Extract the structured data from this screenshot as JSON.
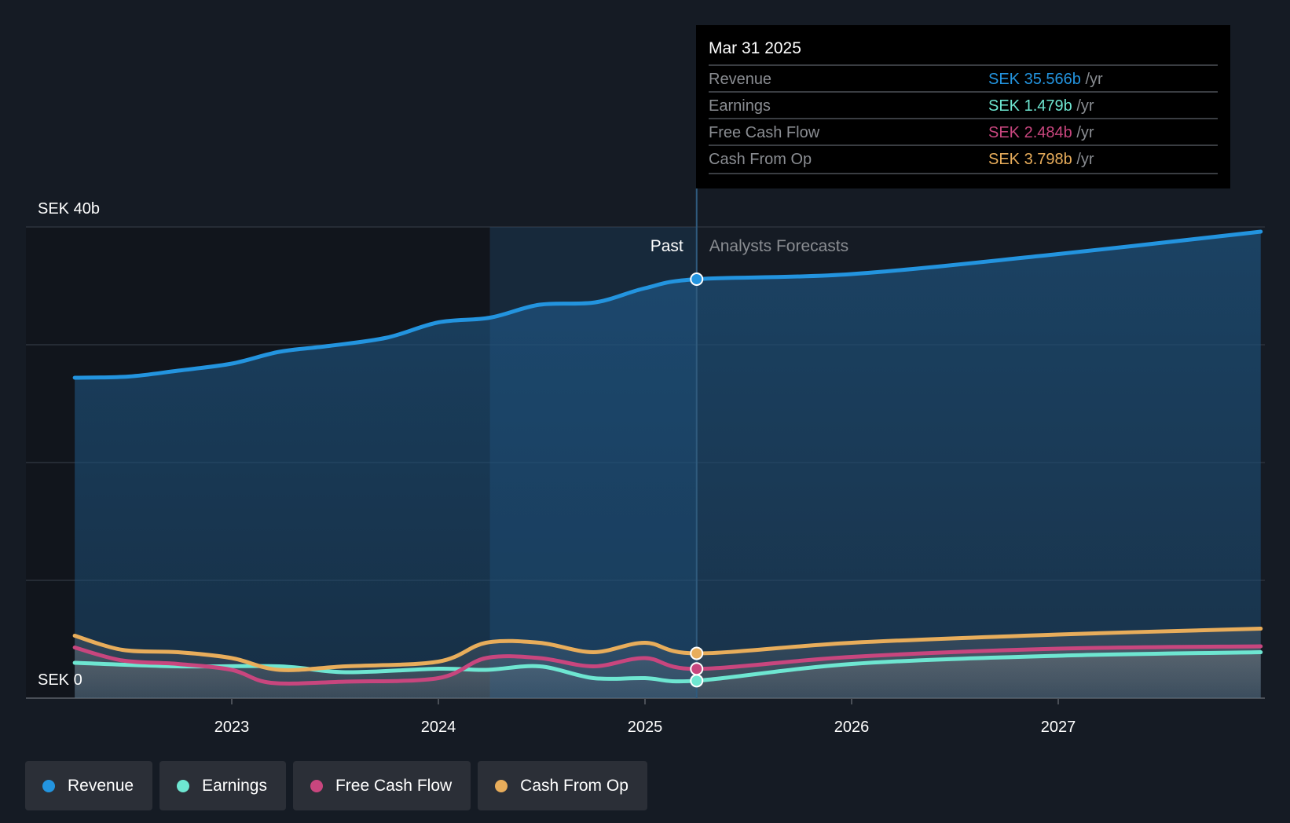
{
  "chart_data": {
    "type": "line",
    "title": "",
    "y_axis": {
      "unit": "SEK",
      "labels": [
        "SEK 40b",
        "SEK 0"
      ],
      "ylim": [
        0,
        40
      ],
      "gridlines": [
        0,
        10,
        20,
        30,
        40
      ]
    },
    "x_axis": {
      "tick_labels": [
        "2023",
        "2024",
        "2025",
        "2026",
        "2027"
      ],
      "ticks": [
        2023,
        2024,
        2025,
        2026,
        2027
      ],
      "xlim": [
        2022.0,
        2027.98
      ]
    },
    "past_label": "Past",
    "forecast_label": "Analysts Forecasts",
    "divider_x": 2025.25,
    "highlight_start_x": 2024.25,
    "series": [
      {
        "name": "Revenue",
        "color": "#2394df",
        "x": [
          2022.24,
          2022.5,
          2022.74,
          2023.0,
          2023.23,
          2023.47,
          2023.75,
          2024.0,
          2024.25,
          2024.49,
          2024.76,
          2025.0,
          2025.25,
          2026.0,
          2027.0,
          2027.98
        ],
        "values": [
          27.2,
          27.3,
          27.8,
          28.4,
          29.4,
          29.9,
          30.6,
          31.9,
          32.3,
          33.4,
          33.6,
          34.8,
          35.566,
          36.0,
          37.7,
          39.6
        ]
      },
      {
        "name": "Earnings",
        "color": "#6ee6d1",
        "x": [
          2022.24,
          2022.74,
          2023.23,
          2023.55,
          2024.0,
          2024.23,
          2024.49,
          2024.75,
          2025.0,
          2025.25,
          2026.0,
          2027.0,
          2027.98
        ],
        "values": [
          3.0,
          2.7,
          2.7,
          2.2,
          2.5,
          2.4,
          2.7,
          1.7,
          1.7,
          1.479,
          2.9,
          3.6,
          3.9
        ]
      },
      {
        "name": "Free Cash Flow",
        "color": "#c8467e",
        "x": [
          2022.24,
          2022.47,
          2022.74,
          2023.0,
          2023.19,
          2023.55,
          2024.0,
          2024.23,
          2024.49,
          2024.75,
          2025.0,
          2025.25,
          2026.0,
          2027.0,
          2027.98
        ],
        "values": [
          4.3,
          3.2,
          2.9,
          2.4,
          1.3,
          1.4,
          1.7,
          3.4,
          3.4,
          2.7,
          3.4,
          2.484,
          3.5,
          4.2,
          4.4
        ]
      },
      {
        "name": "Cash From Op",
        "color": "#e8ad5b",
        "x": [
          2022.24,
          2022.47,
          2022.74,
          2023.0,
          2023.23,
          2023.55,
          2024.0,
          2024.23,
          2024.49,
          2024.75,
          2025.0,
          2025.25,
          2026.0,
          2027.0,
          2027.98
        ],
        "values": [
          5.3,
          4.1,
          3.9,
          3.4,
          2.4,
          2.7,
          3.1,
          4.7,
          4.7,
          3.9,
          4.7,
          3.798,
          4.7,
          5.4,
          5.9
        ]
      }
    ]
  },
  "tooltip": {
    "date": "Mar 31 2025",
    "unit": "/yr",
    "rows": [
      {
        "label": "Revenue",
        "value": "SEK 35.566b",
        "color": "#2394df"
      },
      {
        "label": "Earnings",
        "value": "SEK 1.479b",
        "color": "#6ee6d1"
      },
      {
        "label": "Free Cash Flow",
        "value": "SEK 2.484b",
        "color": "#c8467e"
      },
      {
        "label": "Cash From Op",
        "value": "SEK 3.798b",
        "color": "#e8ad5b"
      }
    ]
  },
  "legend": [
    {
      "label": "Revenue",
      "color": "#2394df"
    },
    {
      "label": "Earnings",
      "color": "#6ee6d1"
    },
    {
      "label": "Free Cash Flow",
      "color": "#c8467e"
    },
    {
      "label": "Cash From Op",
      "color": "#e8ad5b"
    }
  ]
}
